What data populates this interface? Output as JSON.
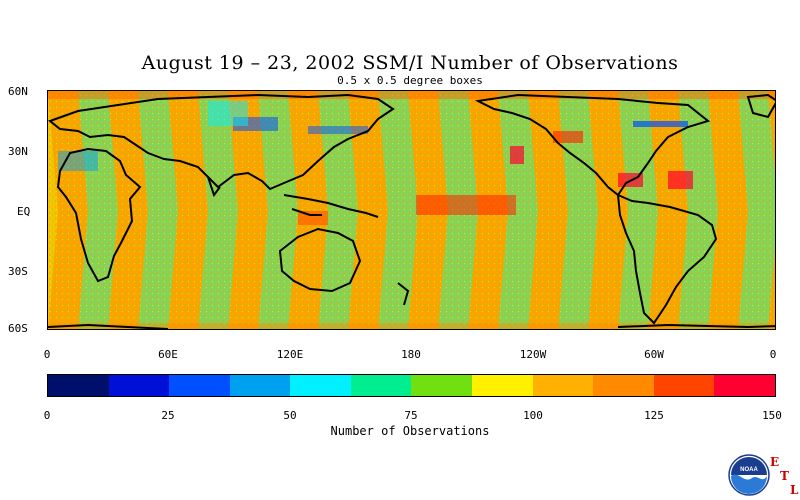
{
  "title": "August 19 – 23, 2002 SSM/I Number of Observations",
  "subtitle": "0.5 x 0.5 degree boxes",
  "lat_labels": [
    "60N",
    "30N",
    "EQ",
    "30S",
    "60S"
  ],
  "lon_labels": [
    "0",
    "60E",
    "120E",
    "180",
    "120W",
    "60W",
    "0"
  ],
  "legend": {
    "title": "Number of Observations",
    "ticks": [
      "0",
      "25",
      "50",
      "75",
      "100",
      "125",
      "150"
    ],
    "colors": [
      "#000f6b",
      "#0010d6",
      "#0050ff",
      "#00a0f0",
      "#00f0ff",
      "#00ee90",
      "#70e010",
      "#fff000",
      "#ffb000",
      "#ff8a00",
      "#ff4400",
      "#ff0030"
    ]
  },
  "logo": {
    "name": "noaa-logo",
    "text": "NOAA",
    "etl": [
      "E",
      "T",
      "L"
    ]
  }
}
